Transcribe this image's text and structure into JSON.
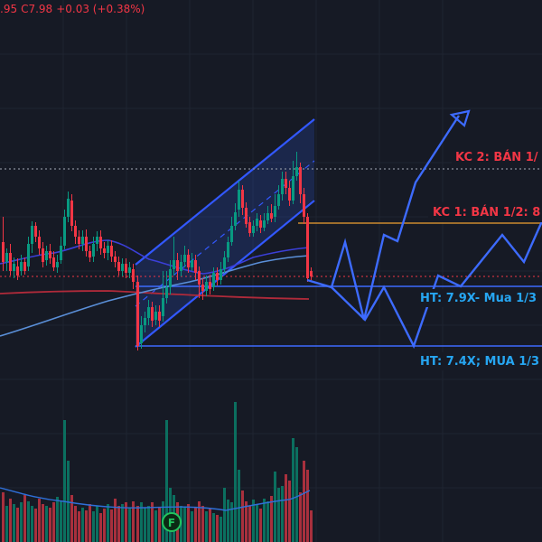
{
  "ohlc": {
    "open_fragment": ".95",
    "close": "C7.98",
    "change": "+0.03 (+0.38%)"
  },
  "levels": {
    "kc2": "KC 2: BÁN 1/",
    "kc1": "KC 1: BÁN 1/2: 8",
    "ht1": "HT: 7.9X- Mua 1/3",
    "ht2": "HT: 7.4X; MUA 1/3"
  },
  "marker": {
    "label": "F"
  },
  "colors": {
    "background": "#161a25",
    "up": "#089981",
    "down": "#f23645",
    "drawing": "#2962ff",
    "projection": "#3d6bff",
    "ma_short": "#3b3fd8",
    "ma_long": "#5a8fd8",
    "ma_red": "#b02a3a",
    "resistance_line": "#f0a030",
    "label_red": "#f23645",
    "label_blue": "#26a6f2"
  }
}
